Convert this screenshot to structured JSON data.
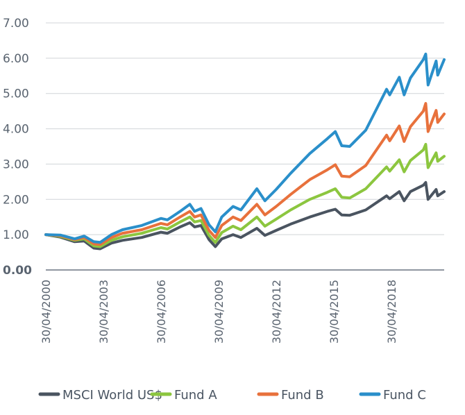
{
  "chart_data": {
    "type": "line",
    "title": "",
    "xlabel": "",
    "ylabel": "",
    "ylim": [
      0,
      7
    ],
    "xlim": [
      "2000-04-30",
      "2021-01-31"
    ],
    "grid": true,
    "legend_position": "bottom",
    "y_ticks": [
      "0.00",
      "1.00",
      "2.00",
      "3.00",
      "4.00",
      "5.00",
      "6.00",
      "7.00"
    ],
    "x_ticks": [
      "30/04/2000",
      "30/04/2003",
      "30/04/2006",
      "30/04/2009",
      "30/04/2012",
      "30/04/2015",
      "30/04/2018"
    ],
    "x_tick_dates": [
      "2000-04-30",
      "2003-04-30",
      "2006-04-30",
      "2009-04-30",
      "2012-04-30",
      "2015-04-30",
      "2018-04-30"
    ],
    "series": [
      {
        "name": "MSCI World US$",
        "color": "#4a5460",
        "points": [
          [
            "2000-04-30",
            1.0
          ],
          [
            "2001-01-31",
            0.93
          ],
          [
            "2001-10-31",
            0.8
          ],
          [
            "2002-04-30",
            0.82
          ],
          [
            "2002-10-31",
            0.62
          ],
          [
            "2003-02-28",
            0.6
          ],
          [
            "2003-09-30",
            0.76
          ],
          [
            "2004-04-30",
            0.84
          ],
          [
            "2005-04-30",
            0.92
          ],
          [
            "2006-04-30",
            1.07
          ],
          [
            "2006-08-31",
            1.04
          ],
          [
            "2007-04-30",
            1.22
          ],
          [
            "2007-10-31",
            1.34
          ],
          [
            "2008-01-31",
            1.22
          ],
          [
            "2008-05-31",
            1.26
          ],
          [
            "2008-10-31",
            0.86
          ],
          [
            "2009-02-28",
            0.66
          ],
          [
            "2009-06-30",
            0.88
          ],
          [
            "2010-01-31",
            1.0
          ],
          [
            "2010-06-30",
            0.92
          ],
          [
            "2011-04-30",
            1.18
          ],
          [
            "2011-09-30",
            0.98
          ],
          [
            "2012-04-30",
            1.12
          ],
          [
            "2013-01-31",
            1.3
          ],
          [
            "2014-01-31",
            1.5
          ],
          [
            "2014-12-31",
            1.66
          ],
          [
            "2015-05-31",
            1.72
          ],
          [
            "2015-09-30",
            1.56
          ],
          [
            "2016-02-29",
            1.55
          ],
          [
            "2016-12-31",
            1.7
          ],
          [
            "2018-01-31",
            2.1
          ],
          [
            "2018-03-31",
            2.02
          ],
          [
            "2018-09-30",
            2.22
          ],
          [
            "2018-12-31",
            1.96
          ],
          [
            "2019-04-30",
            2.22
          ],
          [
            "2019-12-31",
            2.4
          ],
          [
            "2020-02-15",
            2.48
          ],
          [
            "2020-03-31",
            2.0
          ],
          [
            "2020-08-31",
            2.28
          ],
          [
            "2020-09-30",
            2.1
          ],
          [
            "2021-01-31",
            2.22
          ]
        ]
      },
      {
        "name": "Fund A",
        "color": "#8cc63f",
        "points": [
          [
            "2000-04-30",
            1.0
          ],
          [
            "2001-01-31",
            0.95
          ],
          [
            "2001-10-31",
            0.84
          ],
          [
            "2002-04-30",
            0.88
          ],
          [
            "2002-10-31",
            0.68
          ],
          [
            "2003-02-28",
            0.66
          ],
          [
            "2003-09-30",
            0.84
          ],
          [
            "2004-04-30",
            0.94
          ],
          [
            "2005-04-30",
            1.04
          ],
          [
            "2006-04-30",
            1.2
          ],
          [
            "2006-08-31",
            1.16
          ],
          [
            "2007-04-30",
            1.36
          ],
          [
            "2007-10-31",
            1.5
          ],
          [
            "2008-01-31",
            1.36
          ],
          [
            "2008-05-31",
            1.4
          ],
          [
            "2008-10-31",
            0.98
          ],
          [
            "2009-02-28",
            0.78
          ],
          [
            "2009-06-30",
            1.06
          ],
          [
            "2010-01-31",
            1.24
          ],
          [
            "2010-06-30",
            1.14
          ],
          [
            "2011-04-30",
            1.5
          ],
          [
            "2011-09-30",
            1.24
          ],
          [
            "2012-04-30",
            1.44
          ],
          [
            "2013-01-31",
            1.7
          ],
          [
            "2014-01-31",
            2.0
          ],
          [
            "2014-12-31",
            2.2
          ],
          [
            "2015-05-31",
            2.3
          ],
          [
            "2015-09-30",
            2.06
          ],
          [
            "2016-02-29",
            2.04
          ],
          [
            "2016-12-31",
            2.3
          ],
          [
            "2018-01-31",
            2.92
          ],
          [
            "2018-03-31",
            2.8
          ],
          [
            "2018-09-30",
            3.12
          ],
          [
            "2018-12-31",
            2.78
          ],
          [
            "2019-04-30",
            3.1
          ],
          [
            "2019-12-31",
            3.4
          ],
          [
            "2020-02-15",
            3.56
          ],
          [
            "2020-03-31",
            2.9
          ],
          [
            "2020-08-31",
            3.32
          ],
          [
            "2020-09-30",
            3.08
          ],
          [
            "2021-01-31",
            3.22
          ]
        ]
      },
      {
        "name": "Fund B",
        "color": "#e8713c",
        "points": [
          [
            "2000-04-30",
            1.0
          ],
          [
            "2001-01-31",
            0.97
          ],
          [
            "2001-10-31",
            0.86
          ],
          [
            "2002-04-30",
            0.92
          ],
          [
            "2002-10-31",
            0.74
          ],
          [
            "2003-02-28",
            0.72
          ],
          [
            "2003-09-30",
            0.92
          ],
          [
            "2004-04-30",
            1.04
          ],
          [
            "2005-04-30",
            1.14
          ],
          [
            "2006-04-30",
            1.32
          ],
          [
            "2006-08-31",
            1.28
          ],
          [
            "2007-04-30",
            1.5
          ],
          [
            "2007-10-31",
            1.66
          ],
          [
            "2008-01-31",
            1.5
          ],
          [
            "2008-05-31",
            1.56
          ],
          [
            "2008-10-31",
            1.12
          ],
          [
            "2009-02-28",
            0.92
          ],
          [
            "2009-06-30",
            1.26
          ],
          [
            "2010-01-31",
            1.5
          ],
          [
            "2010-06-30",
            1.4
          ],
          [
            "2011-04-30",
            1.86
          ],
          [
            "2011-09-30",
            1.56
          ],
          [
            "2012-04-30",
            1.8
          ],
          [
            "2013-01-31",
            2.14
          ],
          [
            "2014-01-31",
            2.56
          ],
          [
            "2014-12-31",
            2.84
          ],
          [
            "2015-05-31",
            2.98
          ],
          [
            "2015-09-30",
            2.66
          ],
          [
            "2016-02-29",
            2.64
          ],
          [
            "2016-12-31",
            2.96
          ],
          [
            "2018-01-31",
            3.82
          ],
          [
            "2018-03-31",
            3.66
          ],
          [
            "2018-09-30",
            4.08
          ],
          [
            "2018-12-31",
            3.64
          ],
          [
            "2019-04-30",
            4.06
          ],
          [
            "2019-12-31",
            4.5
          ],
          [
            "2020-02-15",
            4.72
          ],
          [
            "2020-03-31",
            3.92
          ],
          [
            "2020-08-31",
            4.52
          ],
          [
            "2020-09-30",
            4.18
          ],
          [
            "2021-01-31",
            4.42
          ]
        ]
      },
      {
        "name": "Fund C",
        "color": "#2a8fca",
        "points": [
          [
            "2000-04-30",
            1.0
          ],
          [
            "2001-01-31",
            0.99
          ],
          [
            "2001-10-31",
            0.88
          ],
          [
            "2002-04-30",
            0.96
          ],
          [
            "2002-10-31",
            0.8
          ],
          [
            "2003-02-28",
            0.78
          ],
          [
            "2003-09-30",
            1.0
          ],
          [
            "2004-04-30",
            1.14
          ],
          [
            "2005-04-30",
            1.26
          ],
          [
            "2006-04-30",
            1.46
          ],
          [
            "2006-08-31",
            1.42
          ],
          [
            "2007-04-30",
            1.66
          ],
          [
            "2007-10-31",
            1.86
          ],
          [
            "2008-01-31",
            1.66
          ],
          [
            "2008-05-31",
            1.74
          ],
          [
            "2008-10-31",
            1.28
          ],
          [
            "2009-02-28",
            1.08
          ],
          [
            "2009-06-30",
            1.5
          ],
          [
            "2010-01-31",
            1.8
          ],
          [
            "2010-06-30",
            1.7
          ],
          [
            "2011-04-30",
            2.3
          ],
          [
            "2011-09-30",
            1.96
          ],
          [
            "2012-04-30",
            2.28
          ],
          [
            "2013-01-31",
            2.74
          ],
          [
            "2014-01-31",
            3.3
          ],
          [
            "2014-12-31",
            3.72
          ],
          [
            "2015-05-31",
            3.92
          ],
          [
            "2015-09-30",
            3.52
          ],
          [
            "2016-02-29",
            3.5
          ],
          [
            "2016-12-31",
            3.96
          ],
          [
            "2018-01-31",
            5.12
          ],
          [
            "2018-03-31",
            4.96
          ],
          [
            "2018-09-30",
            5.46
          ],
          [
            "2018-12-31",
            4.96
          ],
          [
            "2019-04-30",
            5.44
          ],
          [
            "2019-12-31",
            5.96
          ],
          [
            "2020-02-15",
            6.12
          ],
          [
            "2020-03-31",
            5.24
          ],
          [
            "2020-08-31",
            5.92
          ],
          [
            "2020-09-30",
            5.52
          ],
          [
            "2021-01-31",
            5.96
          ]
        ]
      }
    ]
  }
}
